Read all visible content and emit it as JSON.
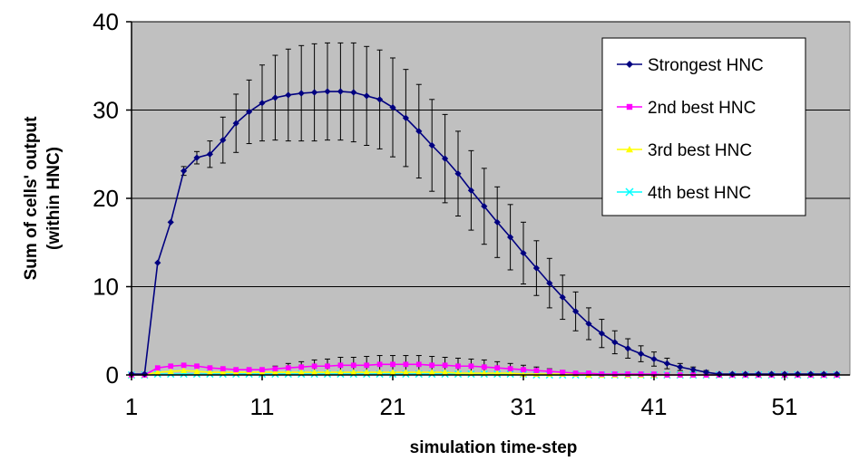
{
  "chart_data": {
    "type": "line",
    "title": "",
    "xlabel": "simulation time-step",
    "ylabel": [
      "Sum of cells' output",
      "(within HNC)"
    ],
    "xlim": [
      0,
      55
    ],
    "ylim": [
      0,
      40
    ],
    "x_ticks": [
      "1",
      "11",
      "21",
      "31",
      "41",
      "51"
    ],
    "y_ticks": [
      "0",
      "10",
      "20",
      "30",
      "40"
    ],
    "grid": "horizontal",
    "legend_position": "top-right",
    "plot_background": "#c0c0c0",
    "series": [
      {
        "name": "Strongest HNC",
        "color": "#000080",
        "marker": "diamond",
        "values": [
          0.1,
          0.1,
          12.7,
          17.3,
          23.1,
          24.6,
          25.0,
          26.6,
          28.5,
          29.8,
          30.8,
          31.4,
          31.7,
          31.9,
          32.0,
          32.1,
          32.1,
          32.0,
          31.6,
          31.2,
          30.3,
          29.1,
          27.6,
          26.0,
          24.5,
          22.8,
          20.9,
          19.1,
          17.3,
          15.6,
          13.8,
          12.1,
          10.4,
          8.8,
          7.2,
          5.8,
          4.7,
          3.7,
          3.0,
          2.4,
          1.8,
          1.3,
          0.9,
          0.6,
          0.3,
          0.1,
          0.1,
          0.1,
          0.1,
          0.1,
          0.1,
          0.1,
          0.1,
          0.1,
          0.1
        ],
        "errors": [
          0,
          0,
          0,
          0,
          0.5,
          0.7,
          1.5,
          2.6,
          3.3,
          3.6,
          4.3,
          4.8,
          5.2,
          5.4,
          5.5,
          5.5,
          5.5,
          5.6,
          5.6,
          5.6,
          5.6,
          5.5,
          5.3,
          5.2,
          5.0,
          4.8,
          4.5,
          4.3,
          4.0,
          3.7,
          3.5,
          3.1,
          2.8,
          2.5,
          2.2,
          1.8,
          1.6,
          1.3,
          1.1,
          0.9,
          0.8,
          0.6,
          0.4,
          0.3,
          0.2,
          0,
          0,
          0,
          0,
          0,
          0,
          0,
          0,
          0,
          0
        ]
      },
      {
        "name": "2nd best HNC",
        "color": "#ff00ff",
        "marker": "square",
        "values": [
          0,
          0,
          0.8,
          1.0,
          1.1,
          1.0,
          0.8,
          0.7,
          0.6,
          0.6,
          0.6,
          0.7,
          0.8,
          0.9,
          1.0,
          1.0,
          1.1,
          1.1,
          1.1,
          1.2,
          1.2,
          1.2,
          1.2,
          1.1,
          1.1,
          1.0,
          1.0,
          0.9,
          0.8,
          0.7,
          0.6,
          0.5,
          0.4,
          0.3,
          0.2,
          0.2,
          0.1,
          0.1,
          0.1,
          0.1,
          0.1,
          0,
          0,
          0,
          0,
          0,
          0,
          0,
          0,
          0,
          0,
          0,
          0,
          0,
          0
        ],
        "errors": [
          0,
          0,
          0,
          0,
          0,
          0,
          0,
          0,
          0,
          0,
          0,
          0.3,
          0.5,
          0.6,
          0.7,
          0.8,
          0.9,
          0.9,
          1.0,
          1.0,
          1.0,
          1.0,
          1.0,
          1.0,
          0.9,
          0.9,
          0.8,
          0.8,
          0.7,
          0.6,
          0.5,
          0.4,
          0.3,
          0.2,
          0.1,
          0,
          0,
          0,
          0,
          0,
          0,
          0,
          0,
          0,
          0,
          0,
          0,
          0,
          0,
          0,
          0,
          0,
          0,
          0,
          0
        ]
      },
      {
        "name": "3rd best HNC",
        "color": "#ffff00",
        "marker": "triangle",
        "values": [
          0,
          0,
          0.3,
          0.4,
          0.5,
          0.4,
          0.3,
          0.3,
          0.3,
          0.3,
          0.3,
          0.3,
          0.3,
          0.3,
          0.3,
          0.3,
          0.3,
          0.3,
          0.3,
          0.3,
          0.3,
          0.3,
          0.3,
          0.3,
          0.3,
          0.2,
          0.2,
          0.2,
          0.2,
          0.2,
          0.1,
          0.1,
          0.1,
          0.1,
          0.1,
          0,
          0,
          0,
          0,
          0,
          0,
          0,
          0,
          0,
          0,
          0,
          0,
          0,
          0,
          0,
          0,
          0,
          0,
          0,
          0
        ]
      },
      {
        "name": "4th best HNC",
        "color": "#00ffff",
        "marker": "x",
        "values": [
          0,
          0,
          0.1,
          0.1,
          0.1,
          0.1,
          0.1,
          0.1,
          0.1,
          0.1,
          0.1,
          0.1,
          0.1,
          0.1,
          0.1,
          0.1,
          0.1,
          0.1,
          0.1,
          0.1,
          0.1,
          0.1,
          0.1,
          0.1,
          0.1,
          0.1,
          0.1,
          0.1,
          0.1,
          0.1,
          0.1,
          0,
          0,
          0,
          0,
          0,
          0,
          0,
          0,
          0,
          0,
          0,
          0,
          0,
          0,
          0,
          0,
          0,
          0,
          0,
          0,
          0,
          0,
          0,
          0
        ]
      }
    ]
  }
}
